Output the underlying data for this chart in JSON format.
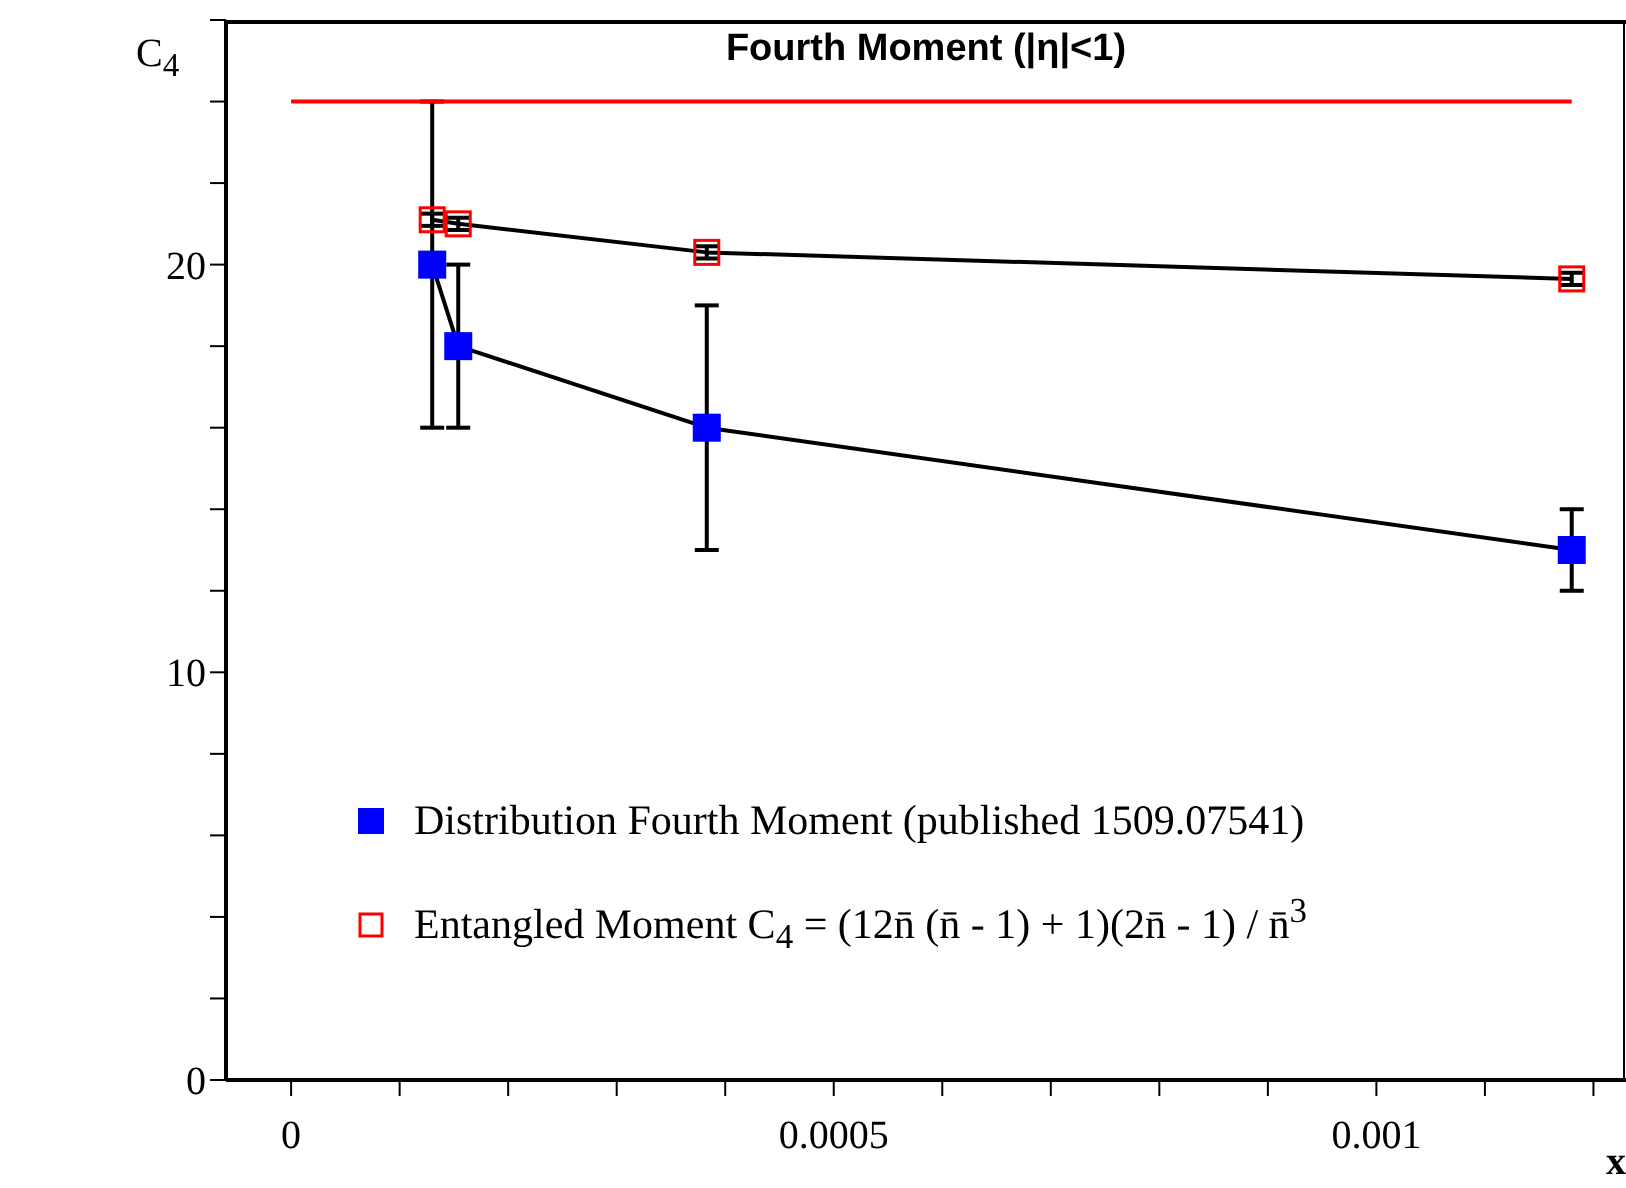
{
  "chart_data": {
    "type": "line",
    "title": "Fourth Moment (|η|<1)",
    "xlabel": "x",
    "ylabel": "C$_{4}$",
    "xlim": [
      -6e-05,
      0.00123
    ],
    "xticks": [
      0,
      {
        "value": 0.0001,
        "label": null
      },
      {
        "value": 0.0002,
        "label": null
      },
      {
        "value": 0.0003,
        "label": null
      },
      {
        "value": 0.0004,
        "label": null
      },
      {
        "value": 0.0005,
        "label": "0.0005"
      },
      {
        "value": 0.0006,
        "label": null
      },
      {
        "value": 0.0007,
        "label": null
      },
      {
        "value": 0.0008,
        "label": null
      },
      {
        "value": 0.0009,
        "label": null
      },
      {
        "value": 0.001,
        "label": "0.001"
      },
      {
        "value": 0.0011,
        "label": null
      },
      {
        "value": 0.0012,
        "label": null
      }
    ],
    "ylim": [
      0,
      26
    ],
    "yticks": [
      0,
      {
        "value": 2,
        "label": null
      },
      {
        "value": 4,
        "label": null
      },
      {
        "value": 6,
        "label": null
      },
      {
        "value": 8,
        "label": null
      },
      10,
      {
        "value": 12,
        "label": null
      },
      {
        "value": 14,
        "label": null
      },
      {
        "value": 16,
        "label": null
      },
      {
        "value": 18,
        "label": null
      },
      20,
      {
        "value": 22,
        "label": null
      },
      {
        "value": 24,
        "label": null
      },
      {
        "value": 26,
        "label": null
      }
    ],
    "legend": "bottom",
    "line_style": "solid",
    "series": [
      {
        "name": "Distribution Fourth Moment (published 1509.07541)",
        "color": "#0000ff",
        "marker": "square",
        "x": [
          0.00013,
          0.000154,
          0.000383,
          0.00118
        ],
        "values": [
          20,
          18,
          16,
          13
        ],
        "errors": [
          [
            16,
            24
          ],
          [
            16,
            20
          ],
          [
            13,
            19
          ],
          [
            12,
            14
          ]
        ]
      },
      {
        "name": "Entangled Moment C$_{4}$ = (12n̄ (n̄ - 1) + 1)(2n̄ - 1) / n̄$^{3}$",
        "color": "#ff0000",
        "marker": "square-open",
        "x": [
          0.00013,
          0.000154,
          0.000383,
          0.00118
        ],
        "values": [
          21.1,
          21.0,
          20.3,
          19.65
        ],
        "errors": [
          0.15,
          0.15,
          0.15,
          0.15
        ]
      },
      {
        "color": "#ff0000",
        "marker": "none",
        "x": [
          0,
          0.00118
        ],
        "values": [
          24,
          24
        ]
      }
    ]
  }
}
